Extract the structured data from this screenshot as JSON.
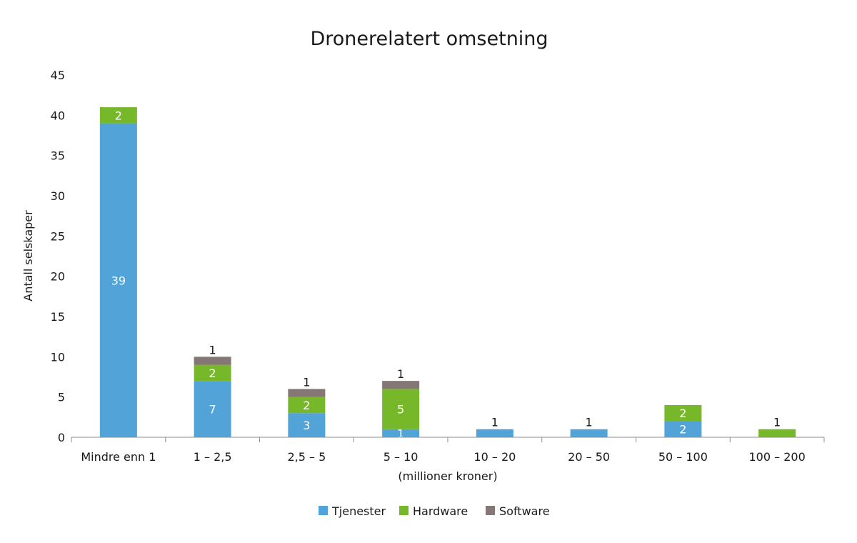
{
  "chart_data": {
    "type": "bar",
    "stacked": true,
    "title": "Dronerelatert omsetning",
    "xlabel": "(millioner kroner)",
    "ylabel": "Antall selskaper",
    "ylim": [
      0,
      45
    ],
    "yticks": [
      0,
      5,
      10,
      15,
      20,
      25,
      30,
      35,
      40,
      45
    ],
    "categories": [
      "Mindre enn 1",
      "1 – 2,5",
      "2,5 – 5",
      "5 – 10",
      "10 – 20",
      "20 – 50",
      "50 – 100",
      "100 – 200"
    ],
    "series": [
      {
        "name": "Tjenester",
        "color": "#52a4d8",
        "values": [
          39,
          7,
          3,
          1,
          1,
          1,
          2,
          0
        ]
      },
      {
        "name": "Hardware",
        "color": "#77b82a",
        "values": [
          2,
          2,
          2,
          5,
          0,
          0,
          2,
          1
        ]
      },
      {
        "name": "Software",
        "color": "#857775",
        "values": [
          0,
          1,
          1,
          1,
          0,
          0,
          0,
          0
        ]
      }
    ],
    "grid": false,
    "legend": "bottom"
  }
}
